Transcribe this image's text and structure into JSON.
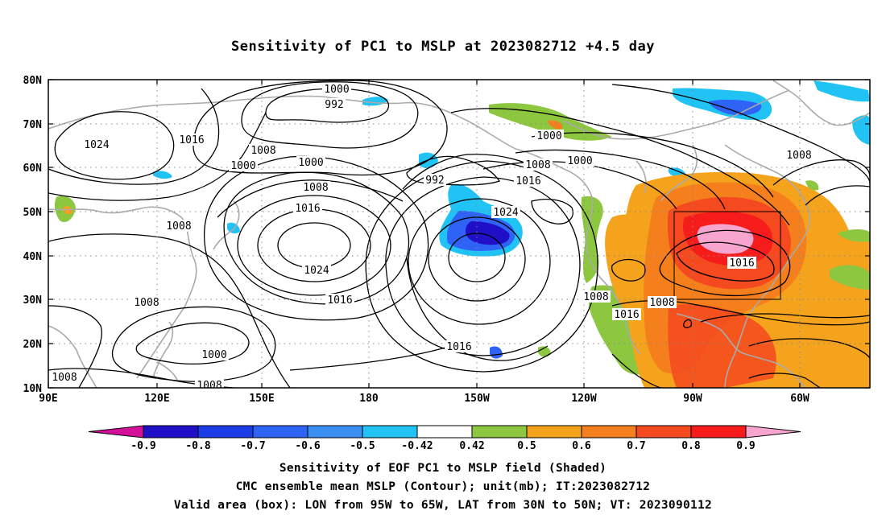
{
  "title": "Sensitivity of PC1 to MSLP at 2023082712 +4.5 day",
  "lat_labels": [
    "80N",
    "70N",
    "60N",
    "50N",
    "40N",
    "30N",
    "20N",
    "10N"
  ],
  "lon_labels": [
    "90E",
    "120E",
    "150E",
    "180",
    "150W",
    "120W",
    "90W",
    "60W"
  ],
  "contour_labels": [
    "1000",
    "992",
    "1024",
    "1016",
    "1008",
    "1000",
    "1000",
    "992",
    "1008",
    "1000",
    "1008",
    "1016",
    "1016",
    "1024",
    "1008",
    "1024",
    "1008",
    "1016",
    "1000",
    "1008",
    "1008",
    "1008",
    "1016",
    "1016",
    "1016",
    "1000",
    "1008",
    "1008"
  ],
  "colorbar": {
    "labels": [
      "-0.9",
      "-0.8",
      "-0.7",
      "-0.6",
      "-0.5",
      "-0.42",
      "0.42",
      "0.5",
      "0.6",
      "0.7",
      "0.8",
      "0.9"
    ],
    "colors": [
      "#1f10c8",
      "#1c3ce8",
      "#2e63f5",
      "#3a8ef2",
      "#21c3f5",
      "#ffffff",
      "#8dc63f",
      "#f5a31d",
      "#f57f1c",
      "#f5491f",
      "#f71c1c"
    ],
    "low_end_color": "#d40f9a",
    "high_end_color": "#f7a5cf"
  },
  "footer": {
    "line1": "Sensitivity of EOF PC1 to MSLP field (Shaded)",
    "line2": "CMC ensemble mean MSLP (Contour); unit(mb); IT:2023082712",
    "line3": "Valid area (box): LON from 95W to 65W, LAT from 30N to 50N; VT: 2023090112"
  }
}
